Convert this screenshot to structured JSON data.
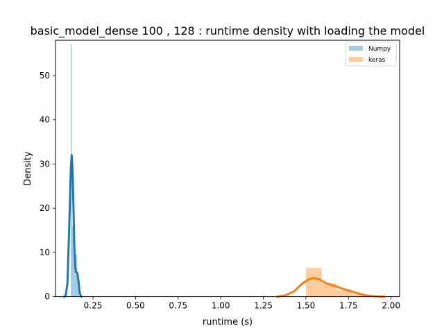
{
  "chart_data": {
    "type": "histogram-kde",
    "title": "basic_model_dense 100 , 128 : runtime density with loading the model",
    "xlabel": "runtime (s)",
    "ylabel": "Density",
    "xlim": [
      0.03,
      2.05
    ],
    "ylim": [
      0,
      58
    ],
    "x_ticks": [
      0.25,
      0.5,
      0.75,
      1.0,
      1.25,
      1.5,
      1.75,
      2.0
    ],
    "x_tick_labels": [
      "0.25",
      "0.50",
      "0.75",
      "1.00",
      "1.25",
      "1.50",
      "1.75",
      "2.00"
    ],
    "y_ticks": [
      0,
      10,
      20,
      30,
      40,
      50
    ],
    "y_tick_labels": [
      "0",
      "10",
      "20",
      "30",
      "40",
      "50"
    ],
    "grid": false,
    "legend": {
      "placement": "top-right"
    },
    "series": [
      {
        "name": "Numpy",
        "color": "#1f77b4",
        "hist": [
          {
            "x0": 0.12,
            "x1": 0.126,
            "density": 57
          },
          {
            "x0": 0.126,
            "x1": 0.132,
            "density": 16
          },
          {
            "x0": 0.132,
            "x1": 0.138,
            "density": 15
          },
          {
            "x0": 0.138,
            "x1": 0.144,
            "density": 14
          },
          {
            "x0": 0.144,
            "x1": 0.15,
            "density": 5
          },
          {
            "x0": 0.15,
            "x1": 0.156,
            "density": 9.5
          },
          {
            "x0": 0.156,
            "x1": 0.162,
            "density": 5
          },
          {
            "x0": 0.162,
            "x1": 0.168,
            "density": 2
          }
        ],
        "kde": [
          [
            0.082,
            0
          ],
          [
            0.09,
            0.3
          ],
          [
            0.1,
            3
          ],
          [
            0.11,
            15
          ],
          [
            0.12,
            29
          ],
          [
            0.125,
            32
          ],
          [
            0.13,
            29
          ],
          [
            0.135,
            21
          ],
          [
            0.14,
            12
          ],
          [
            0.145,
            7
          ],
          [
            0.15,
            5.5
          ],
          [
            0.155,
            5.5
          ],
          [
            0.16,
            5
          ],
          [
            0.165,
            3.5
          ],
          [
            0.17,
            1.5
          ],
          [
            0.175,
            0.5
          ],
          [
            0.182,
            0
          ]
        ]
      },
      {
        "name": "keras",
        "color": "#ff7f0e",
        "hist": [
          {
            "x0": 1.5,
            "x1": 1.59,
            "density": 6.5
          },
          {
            "x0": 1.59,
            "x1": 1.68,
            "density": 3
          },
          {
            "x0": 1.68,
            "x1": 1.77,
            "density": 1.5
          },
          {
            "x0": 1.77,
            "x1": 1.86,
            "density": 0.5
          },
          {
            "x0": 1.86,
            "x1": 1.95,
            "density": 0.2
          }
        ],
        "kde": [
          [
            1.33,
            0
          ],
          [
            1.38,
            0.3
          ],
          [
            1.43,
            1.2
          ],
          [
            1.48,
            3.0
          ],
          [
            1.52,
            4.0
          ],
          [
            1.55,
            4.2
          ],
          [
            1.58,
            3.9
          ],
          [
            1.62,
            3.0
          ],
          [
            1.66,
            2.5
          ],
          [
            1.7,
            2.0
          ],
          [
            1.75,
            1.4
          ],
          [
            1.8,
            0.8
          ],
          [
            1.85,
            0.3
          ],
          [
            1.9,
            0.1
          ],
          [
            1.96,
            0
          ]
        ]
      }
    ]
  }
}
